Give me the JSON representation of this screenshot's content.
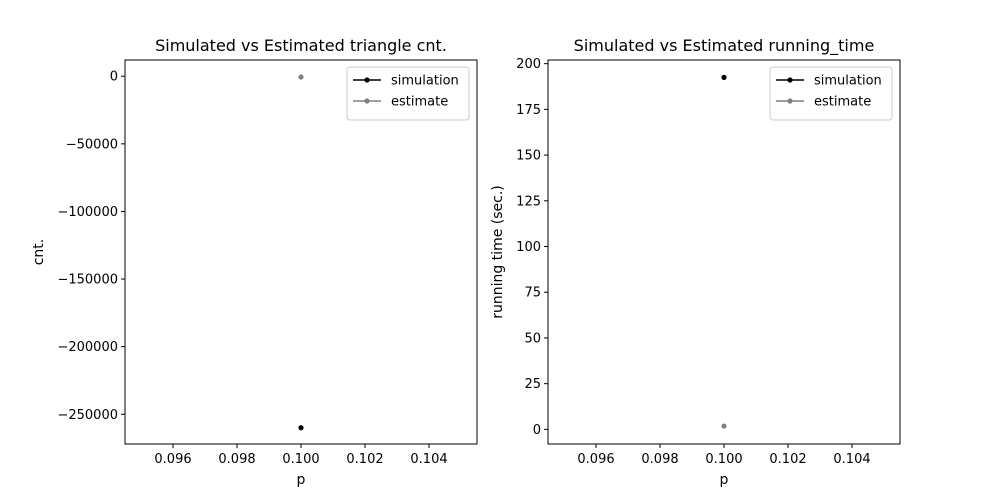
{
  "chart_data": [
    {
      "type": "scatter",
      "title": "Simulated vs Estimated triangle cnt.",
      "xlabel": "p",
      "ylabel": "cnt.",
      "xlim": [
        0.0945,
        0.1055
      ],
      "ylim": [
        -272000,
        12000
      ],
      "xticks": [
        0.096,
        0.098,
        0.1,
        0.102,
        0.104
      ],
      "xtick_labels": [
        "0.096",
        "0.098",
        "0.100",
        "0.102",
        "0.104"
      ],
      "yticks": [
        0,
        -50000,
        -100000,
        -150000,
        -200000,
        -250000
      ],
      "ytick_labels": [
        "0",
        "−50000",
        "−100000",
        "−150000",
        "−200000",
        "−250000"
      ],
      "grid": false,
      "legend_position": "top-right",
      "series": [
        {
          "name": "simulation",
          "color": "#000000",
          "x": [
            0.1
          ],
          "y": [
            -260000
          ]
        },
        {
          "name": "estimate",
          "color": "#808080",
          "x": [
            0.1
          ],
          "y": [
            -600
          ]
        }
      ]
    },
    {
      "type": "scatter",
      "title": "Simulated vs Estimated running_time",
      "xlabel": "p",
      "ylabel": "running time (sec.)",
      "xlim": [
        0.0945,
        0.1055
      ],
      "ylim": [
        -8,
        202
      ],
      "xticks": [
        0.096,
        0.098,
        0.1,
        0.102,
        0.104
      ],
      "xtick_labels": [
        "0.096",
        "0.098",
        "0.100",
        "0.102",
        "0.104"
      ],
      "yticks": [
        0,
        25,
        50,
        75,
        100,
        125,
        150,
        175,
        200
      ],
      "ytick_labels": [
        "0",
        "25",
        "50",
        "75",
        "100",
        "125",
        "150",
        "175",
        "200"
      ],
      "grid": false,
      "legend_position": "top-right",
      "series": [
        {
          "name": "simulation",
          "color": "#000000",
          "x": [
            0.1
          ],
          "y": [
            192.5
          ]
        },
        {
          "name": "estimate",
          "color": "#808080",
          "x": [
            0.1
          ],
          "y": [
            1.8
          ]
        }
      ]
    }
  ]
}
